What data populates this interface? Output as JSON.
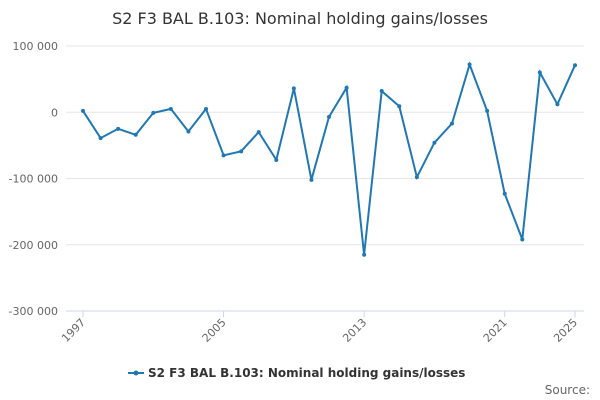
{
  "chart_data": {
    "type": "line",
    "title": "S2 F3 BAL B.103: Nominal holding gains/losses",
    "xlabel": "",
    "ylabel": "",
    "ylim": [
      -300000,
      100000
    ],
    "yticks": [
      100000,
      0,
      -100000,
      -200000,
      -300000
    ],
    "ytick_labels": [
      "100 000",
      "0",
      "-100 000",
      "-200 000",
      "-300 000"
    ],
    "xlim": [
      1997,
      2025
    ],
    "xticks": [
      1997,
      2005,
      2013,
      2021,
      2025
    ],
    "xtick_labels": [
      "1997",
      "2005",
      "2013",
      "2021",
      "2025"
    ],
    "grid": true,
    "legend": "bottom-center",
    "series": [
      {
        "name": "S2 F3 BAL B.103: Nominal holding gains/losses",
        "x": [
          1997,
          1998,
          1999,
          2000,
          2001,
          2002,
          2003,
          2004,
          2005,
          2006,
          2007,
          2008,
          2009,
          2010,
          2011,
          2012,
          2013,
          2014,
          2015,
          2016,
          2017,
          2018,
          2019,
          2020,
          2021,
          2022,
          2023,
          2024,
          2025
        ],
        "values": [
          2000,
          -39000,
          -25000,
          -34000,
          -1000,
          5000,
          -29000,
          5000,
          -65000,
          -59000,
          -30000,
          -72000,
          36000,
          -102000,
          -7000,
          37000,
          -215000,
          32000,
          9000,
          -98000,
          -46000,
          -17000,
          72000,
          2000,
          -123000,
          -192000,
          60000,
          12000,
          71000
        ],
        "color": "#1f78b4"
      }
    ]
  },
  "footer": {
    "source_label": "Source:"
  }
}
